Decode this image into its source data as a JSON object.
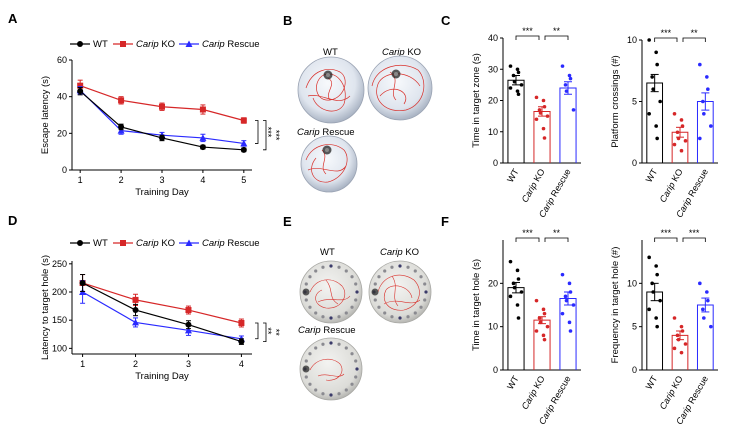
{
  "panel_letters": {
    "a": "A",
    "b": "B",
    "c": "C",
    "d": "D",
    "e": "E",
    "f": "F"
  },
  "legend": {
    "wt": "WT",
    "ko_italic": "Carip",
    "ko_suffix": " KO",
    "rescue_italic": "Carip",
    "rescue_suffix": " Rescue"
  },
  "group_labels": [
    "WT",
    "Carip KO",
    "Carip Rescue"
  ],
  "maze_labels": {
    "wt": "WT",
    "ko_italic": "Carip",
    "ko_suffix": " KO",
    "rescue_italic": "Carip",
    "rescue_suffix": " Rescue"
  },
  "colors": {
    "wt": "#000000",
    "ko": "#d62728",
    "rescue": "#2a2aff"
  },
  "chart_data": [
    {
      "panel": "A",
      "type": "line",
      "xlabel": "Training  Day",
      "ylabel": "Escape latency (s)",
      "x": [
        1,
        2,
        3,
        4,
        5
      ],
      "xlim": [
        0.8,
        5.2
      ],
      "ylim": [
        0,
        60
      ],
      "yticks": [
        0,
        20,
        40,
        60
      ],
      "series": [
        {
          "name": "WT",
          "values": [
            43,
            23.5,
            17.5,
            12.5,
            11
          ],
          "errors": [
            2,
            1.5,
            1.5,
            1,
            1
          ]
        },
        {
          "name": "Carip KO",
          "values": [
            46,
            38,
            34.5,
            33,
            27
          ],
          "errors": [
            3,
            2,
            2,
            2.5,
            1.5
          ]
        },
        {
          "name": "Carip Rescue",
          "values": [
            43.5,
            21.5,
            19,
            17.5,
            14.5
          ],
          "errors": [
            2,
            2,
            1.5,
            2,
            1.5
          ]
        }
      ],
      "significance": [
        "***",
        "***"
      ]
    },
    {
      "panel": "C1",
      "type": "bar",
      "ylabel": "Time in target zone (s)",
      "ylim": [
        0,
        40
      ],
      "yticks": [
        0,
        10,
        20,
        30,
        40
      ],
      "categories": [
        "WT",
        "Carip KO",
        "Carip Rescue"
      ],
      "values": [
        26.5,
        16.5,
        24
      ],
      "errors": [
        1.5,
        1.5,
        2
      ],
      "points": [
        [
          31,
          30,
          29,
          28,
          26,
          25,
          24,
          23,
          22
        ],
        [
          21,
          20,
          18,
          17,
          16,
          15,
          14,
          11,
          8
        ],
        [
          31,
          28,
          27,
          25,
          23,
          17
        ]
      ],
      "significance": [
        "***",
        "**"
      ]
    },
    {
      "panel": "C2",
      "type": "bar",
      "ylabel": "Platform crossings (#)",
      "ylim": [
        0,
        10
      ],
      "yticks": [
        0,
        5,
        10
      ],
      "categories": [
        "WT",
        "Carip KO",
        "Carip Rescue"
      ],
      "values": [
        6.5,
        2.5,
        5
      ],
      "errors": [
        0.7,
        0.4,
        0.7
      ],
      "points": [
        [
          10,
          9,
          8,
          7,
          6,
          5,
          4,
          3,
          2
        ],
        [
          4,
          3.5,
          3,
          2.5,
          2,
          1.8,
          1.5,
          1
        ],
        [
          8,
          7,
          6,
          5,
          4,
          3,
          2
        ]
      ],
      "significance": [
        "***",
        "**"
      ]
    },
    {
      "panel": "D",
      "type": "line",
      "xlabel": "Training  Day",
      "ylabel": "Latency to target hole (s)",
      "x": [
        1,
        2,
        3,
        4
      ],
      "xlim": [
        0.8,
        4.2
      ],
      "ylim": [
        90,
        255
      ],
      "yticks": [
        100,
        150,
        200,
        250
      ],
      "series": [
        {
          "name": "WT",
          "values": [
            216,
            168,
            142,
            112
          ],
          "errors": [
            15,
            10,
            7,
            5
          ]
        },
        {
          "name": "Carip KO",
          "values": [
            216,
            186,
            168,
            145
          ],
          "errors": [
            15,
            10,
            7,
            7
          ]
        },
        {
          "name": "Carip Rescue",
          "values": [
            200,
            146,
            132,
            117
          ],
          "errors": [
            20,
            8,
            9,
            5
          ]
        }
      ],
      "significance": [
        "**",
        "**"
      ]
    },
    {
      "panel": "F1",
      "type": "bar",
      "ylabel": "Time in target hole (s)",
      "ylim": [
        0,
        30
      ],
      "yticks": [
        0,
        10,
        20
      ],
      "categories": [
        "WT",
        "Carip KO",
        "Carip Rescue"
      ],
      "values": [
        19,
        11.5,
        16.5
      ],
      "errors": [
        1.2,
        0.8,
        1.5
      ],
      "points": [
        [
          25,
          23,
          21,
          20,
          19,
          18,
          17,
          15,
          12
        ],
        [
          16,
          14,
          13,
          12,
          11,
          10,
          9,
          8,
          7
        ],
        [
          22,
          20,
          18,
          17,
          16,
          15,
          13,
          11,
          9
        ]
      ],
      "significance": [
        "***",
        "**"
      ]
    },
    {
      "panel": "F2",
      "type": "bar",
      "ylabel": "Frequency in target hole (#)",
      "ylim": [
        0,
        15
      ],
      "yticks": [
        0,
        5,
        10
      ],
      "categories": [
        "WT",
        "Carip KO",
        "Carip Rescue"
      ],
      "values": [
        9,
        4,
        7.5
      ],
      "errors": [
        1,
        0.5,
        0.8
      ],
      "points": [
        [
          13,
          12,
          11,
          10,
          9,
          8,
          7,
          6,
          5
        ],
        [
          6,
          5,
          4.5,
          4,
          3.5,
          3,
          2.5,
          2
        ],
        [
          10,
          9,
          8,
          7,
          6,
          5
        ]
      ],
      "significance": [
        "***",
        "***"
      ]
    }
  ]
}
